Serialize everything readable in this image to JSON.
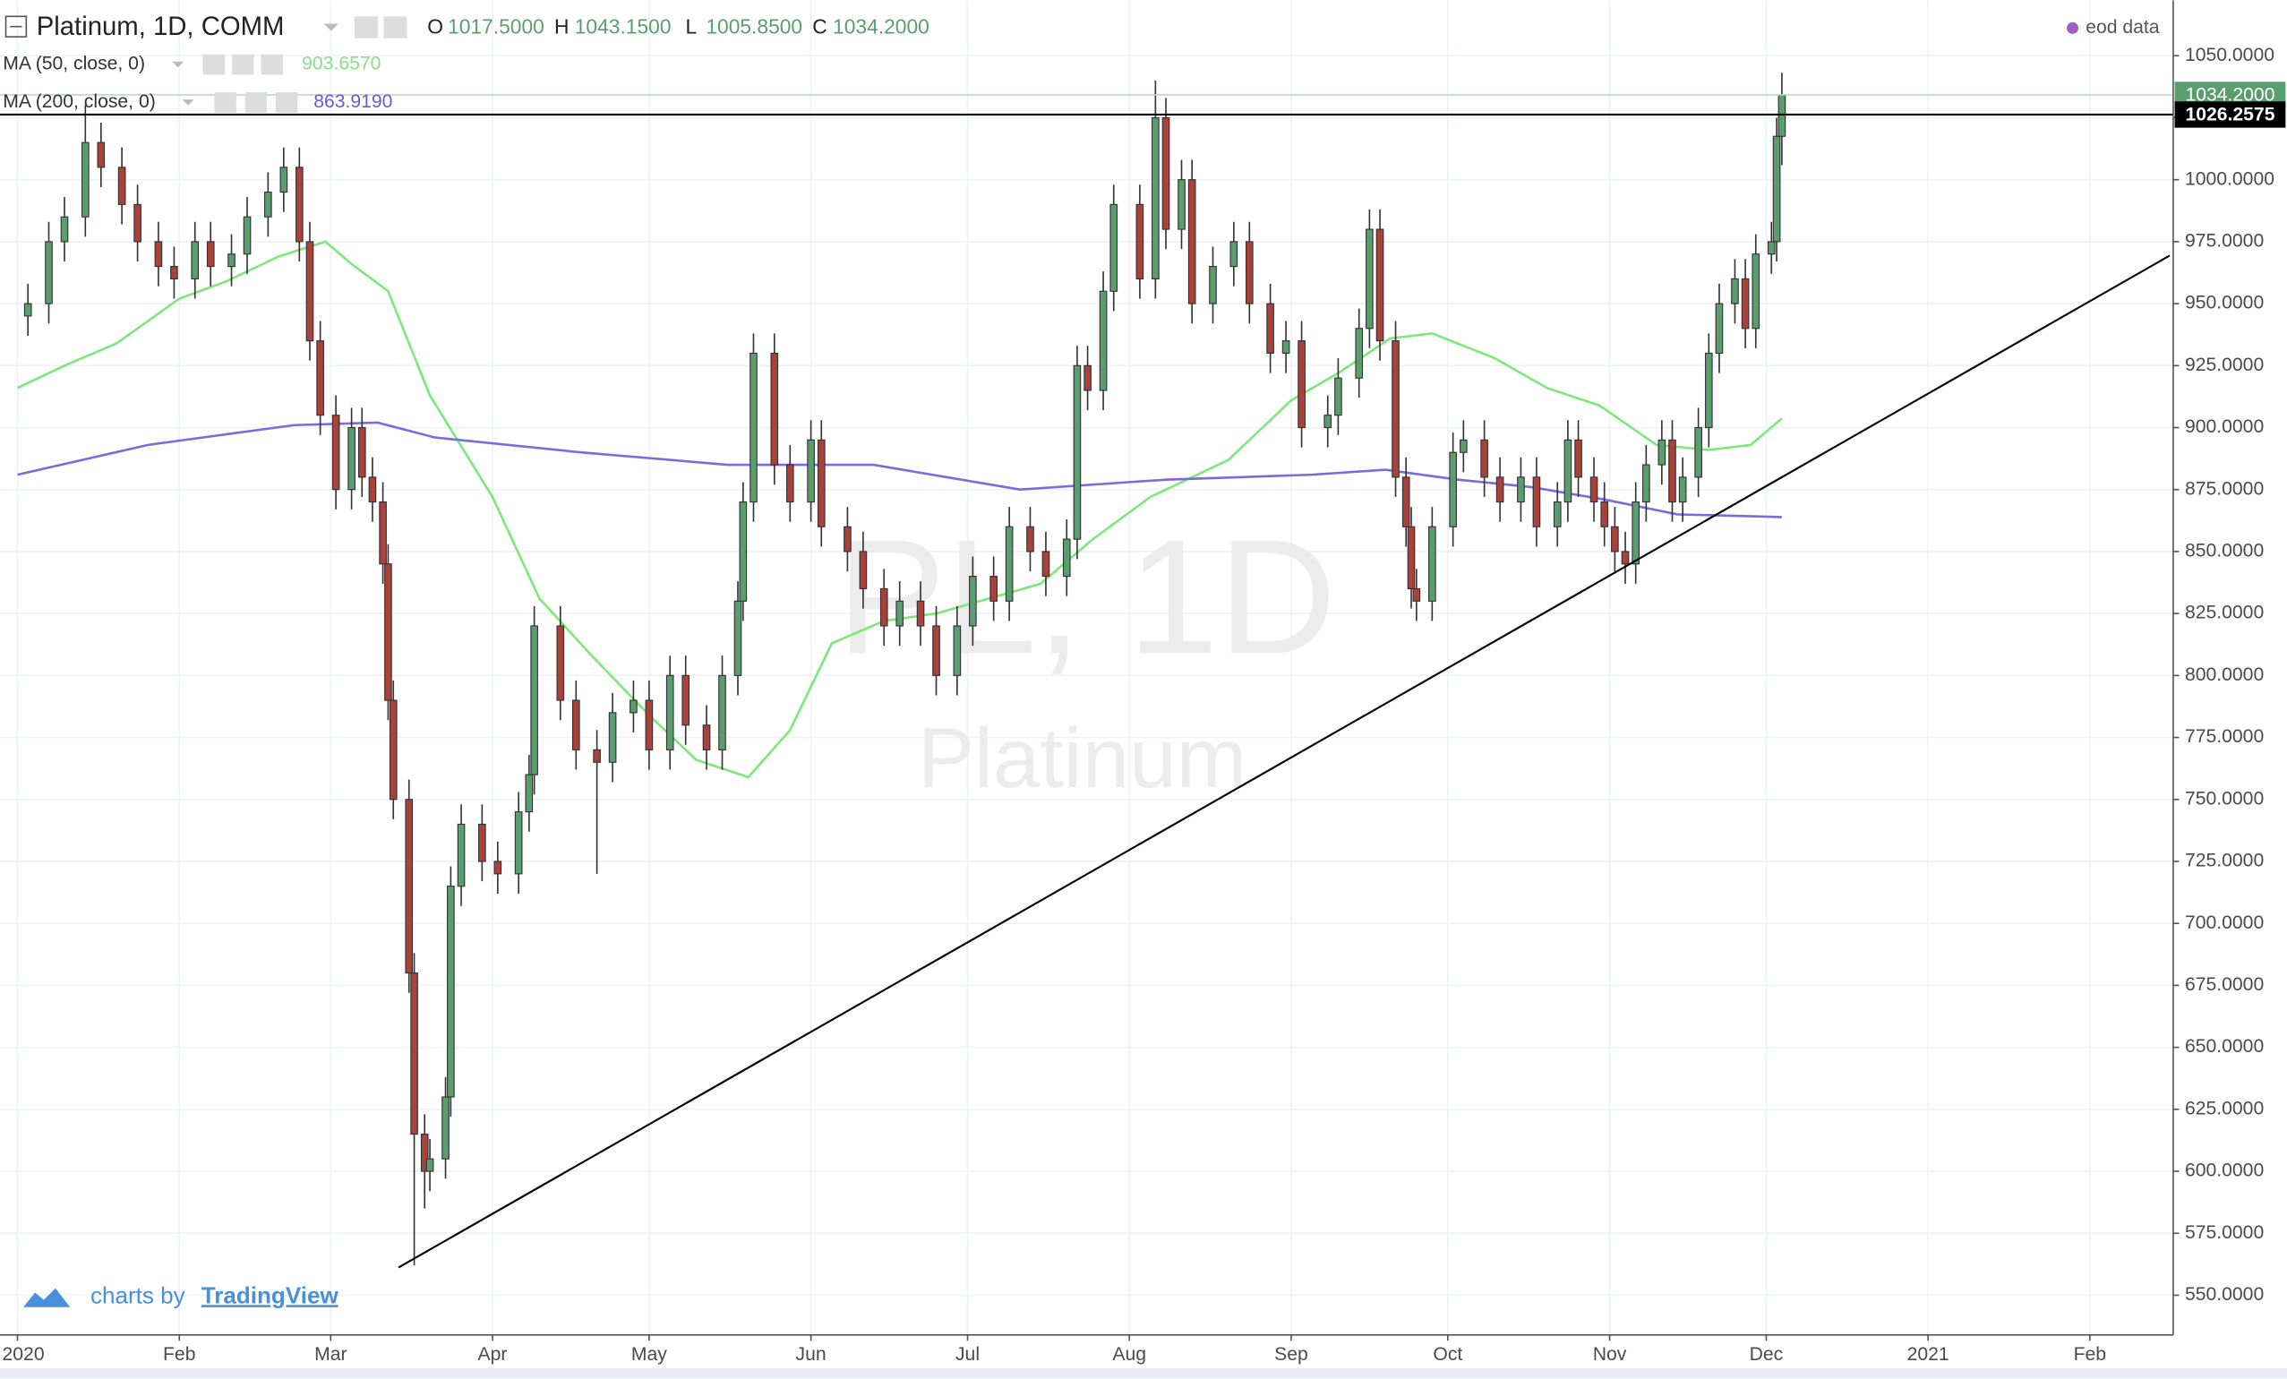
{
  "chart_data": {
    "type": "candlestick",
    "title": "Platinum, 1D, COMM",
    "ohlc": [
      {
        "key": "O",
        "label": "1017.5000"
      },
      {
        "key": "H",
        "label": "1043.1500"
      },
      {
        "key": "L",
        "label": "1005.8500"
      },
      {
        "key": "C",
        "label": "1034.2000"
      }
    ],
    "source": "eod data",
    "watermark": [
      "PL, 1D",
      "Platinum"
    ],
    "branding": {
      "prefix": "charts by",
      "name": "TradingView"
    },
    "up_color": "#5a9e6f",
    "down_color": "#a8423a",
    "xlim": [
      -3.35,
      412.97
    ],
    "ylim": [
      534.0,
      1072.35
    ],
    "xticks": [
      {
        "value": 0,
        "label": "2020"
      },
      {
        "value": 31,
        "label": "Feb"
      },
      {
        "value": 60,
        "label": "Mar"
      },
      {
        "value": 91,
        "label": "Apr"
      },
      {
        "value": 121,
        "label": "May"
      },
      {
        "value": 152,
        "label": "Jun"
      },
      {
        "value": 182,
        "label": "Jul"
      },
      {
        "value": 213,
        "label": "Aug"
      },
      {
        "value": 244,
        "label": "Sep"
      },
      {
        "value": 274,
        "label": "Oct"
      },
      {
        "value": 305,
        "label": "Nov"
      },
      {
        "value": 335,
        "label": "Dec"
      },
      {
        "value": 366,
        "label": "2021"
      },
      {
        "value": 397,
        "label": "Feb"
      }
    ],
    "yticks": [
      {
        "value": 550,
        "label": "550.0000"
      },
      {
        "value": 575,
        "label": "575.0000"
      },
      {
        "value": 600,
        "label": "600.0000"
      },
      {
        "value": 625,
        "label": "625.0000"
      },
      {
        "value": 650,
        "label": "650.0000"
      },
      {
        "value": 675,
        "label": "675.0000"
      },
      {
        "value": 700,
        "label": "700.0000"
      },
      {
        "value": 725,
        "label": "725.0000"
      },
      {
        "value": 750,
        "label": "750.0000"
      },
      {
        "value": 775,
        "label": "775.0000"
      },
      {
        "value": 800,
        "label": "800.0000"
      },
      {
        "value": 825,
        "label": "825.0000"
      },
      {
        "value": 850,
        "label": "850.0000"
      },
      {
        "value": 875,
        "label": "875.0000"
      },
      {
        "value": 900,
        "label": "900.0000"
      },
      {
        "value": 925,
        "label": "925.0000"
      },
      {
        "value": 950,
        "label": "950.0000"
      },
      {
        "value": 975,
        "label": "975.0000"
      },
      {
        "value": 1000,
        "label": "1000.0000"
      },
      {
        "value": 1025,
        "label": "1025.0000"
      },
      {
        "value": 1050,
        "label": "1050.0000"
      }
    ],
    "grid": true,
    "candles": {
      "x": [
        2,
        6,
        9,
        13,
        16,
        20,
        23,
        27,
        30,
        34,
        37,
        41,
        44,
        48,
        51,
        54,
        56,
        58,
        61,
        64,
        66,
        68,
        70,
        71,
        72,
        75,
        76,
        78,
        79,
        82,
        83,
        85,
        89,
        92,
        96,
        98,
        99,
        104,
        107,
        111,
        114,
        118,
        121,
        125,
        128,
        132,
        135,
        138,
        139,
        141,
        145,
        148,
        152,
        154,
        159,
        162,
        166,
        169,
        173,
        176,
        180,
        183,
        187,
        190,
        194,
        197,
        201,
        203,
        205,
        208,
        210,
        215,
        218,
        220,
        223,
        225,
        229,
        233,
        236,
        240,
        243,
        246,
        251,
        253,
        257,
        259,
        261,
        264,
        266,
        267,
        268,
        271,
        275,
        277,
        281,
        284,
        288,
        291,
        295,
        297,
        299,
        302,
        304,
        306,
        308,
        310,
        312,
        315,
        317,
        319,
        322,
        324,
        326,
        329,
        331,
        333,
        336,
        337,
        338
      ],
      "open": [
        945,
        950,
        975,
        985,
        1015,
        1005,
        990,
        975,
        965,
        960,
        975,
        965,
        970,
        985,
        995,
        1005,
        975,
        935,
        905,
        875,
        900,
        880,
        870,
        845,
        790,
        750,
        680,
        615,
        600,
        605,
        630,
        715,
        740,
        725,
        720,
        745,
        760,
        820,
        790,
        770,
        765,
        785,
        790,
        770,
        800,
        780,
        770,
        800,
        830,
        870,
        930,
        885,
        870,
        895,
        860,
        850,
        835,
        820,
        830,
        820,
        800,
        820,
        840,
        830,
        860,
        850,
        840,
        855,
        925,
        915,
        955,
        990,
        960,
        1025,
        980,
        1000,
        950,
        965,
        975,
        950,
        930,
        935,
        900,
        905,
        920,
        940,
        980,
        935,
        880,
        860,
        835,
        830,
        860,
        890,
        895,
        880,
        870,
        880,
        860,
        870,
        895,
        880,
        870,
        860,
        850,
        845,
        870,
        885,
        895,
        870,
        880,
        900,
        930,
        950,
        960,
        940,
        970,
        975,
        1017.5
      ],
      "high": [
        958,
        983,
        993,
        1030,
        1023,
        1013,
        998,
        983,
        973,
        983,
        983,
        978,
        993,
        1003,
        1013,
        1013,
        983,
        943,
        913,
        908,
        908,
        888,
        878,
        853,
        798,
        758,
        688,
        623,
        613,
        638,
        723,
        748,
        748,
        733,
        753,
        768,
        828,
        828,
        798,
        778,
        793,
        798,
        798,
        808,
        808,
        788,
        808,
        838,
        878,
        938,
        938,
        893,
        903,
        903,
        868,
        858,
        843,
        838,
        838,
        828,
        828,
        848,
        848,
        868,
        868,
        858,
        863,
        933,
        933,
        963,
        998,
        998,
        1040,
        1033,
        1008,
        1008,
        973,
        983,
        983,
        958,
        943,
        943,
        913,
        928,
        948,
        988,
        988,
        943,
        888,
        868,
        843,
        868,
        898,
        903,
        903,
        888,
        888,
        888,
        878,
        903,
        903,
        888,
        878,
        868,
        858,
        878,
        893,
        903,
        903,
        888,
        908,
        938,
        958,
        968,
        968,
        978,
        983,
        1025,
        1043.15
      ],
      "low": [
        937,
        942,
        967,
        977,
        997,
        982,
        967,
        957,
        952,
        952,
        957,
        957,
        962,
        977,
        987,
        967,
        927,
        897,
        867,
        867,
        872,
        862,
        837,
        782,
        742,
        672,
        562,
        585,
        592,
        597,
        622,
        707,
        717,
        712,
        712,
        737,
        752,
        782,
        762,
        720,
        757,
        777,
        762,
        762,
        772,
        762,
        762,
        792,
        822,
        862,
        877,
        862,
        862,
        852,
        842,
        827,
        812,
        812,
        812,
        792,
        792,
        812,
        822,
        822,
        842,
        832,
        832,
        847,
        907,
        907,
        947,
        952,
        952,
        972,
        972,
        942,
        942,
        957,
        942,
        922,
        922,
        892,
        892,
        897,
        912,
        932,
        927,
        872,
        852,
        827,
        822,
        822,
        852,
        882,
        872,
        862,
        862,
        852,
        852,
        862,
        872,
        862,
        852,
        842,
        837,
        837,
        862,
        877,
        862,
        862,
        872,
        892,
        922,
        942,
        932,
        932,
        962,
        967,
        1005.85
      ],
      "close": [
        950,
        975,
        985,
        1015,
        1005,
        990,
        975,
        965,
        960,
        975,
        965,
        970,
        985,
        995,
        1005,
        975,
        935,
        905,
        875,
        900,
        880,
        870,
        845,
        790,
        750,
        680,
        615,
        600,
        605,
        630,
        715,
        740,
        725,
        720,
        745,
        760,
        820,
        790,
        770,
        765,
        785,
        790,
        770,
        800,
        780,
        770,
        800,
        830,
        870,
        930,
        885,
        870,
        895,
        860,
        850,
        835,
        820,
        830,
        820,
        800,
        820,
        840,
        830,
        860,
        850,
        840,
        855,
        925,
        915,
        955,
        990,
        960,
        1025,
        980,
        1000,
        950,
        965,
        975,
        950,
        930,
        935,
        900,
        905,
        920,
        940,
        980,
        935,
        880,
        860,
        835,
        830,
        860,
        890,
        895,
        880,
        870,
        880,
        860,
        870,
        895,
        880,
        870,
        860,
        850,
        845,
        870,
        885,
        895,
        870,
        880,
        900,
        930,
        950,
        960,
        940,
        970,
        975,
        1017.5,
        1034.2
      ]
    },
    "series": [
      {
        "name": "MA (50, close, 0)",
        "last_label": "903.6570",
        "color": "#7de87a",
        "x": [
          0,
          9,
          19,
          31,
          40,
          50,
          59,
          64,
          71,
          79,
          91,
          100,
          110,
          121,
          130,
          140,
          148,
          156,
          166,
          176,
          186,
          196,
          206,
          217,
          232,
          244,
          253,
          263,
          271,
          283,
          293,
          303,
          314,
          324,
          332,
          338
        ],
        "values": [
          916,
          925,
          934,
          952,
          959,
          969,
          975,
          966,
          955,
          913,
          872,
          831,
          808,
          784,
          766,
          759,
          778,
          813,
          822,
          825,
          831,
          837,
          855,
          872,
          887,
          911,
          922,
          936,
          938,
          928,
          916,
          909,
          893,
          891,
          893,
          903.657
        ]
      },
      {
        "name": "MA (200, close, 0)",
        "last_label": "863.9190",
        "color": "#7b6be0",
        "x": [
          0,
          25,
          53,
          69,
          80,
          108,
          136,
          164,
          192,
          220,
          248,
          262,
          276,
          290,
          304,
          318,
          338
        ],
        "values": [
          881,
          893,
          901,
          902,
          896,
          890,
          885,
          885,
          875,
          879,
          881,
          883,
          879,
          876,
          871,
          865,
          863.919
        ]
      }
    ],
    "price_tags": [
      {
        "value": 1034.2,
        "label": "1034.2000",
        "color": "#5a9e6f"
      },
      {
        "value": 1026.2575,
        "label": "1026.2575",
        "color": "#000000"
      }
    ],
    "trendline": {
      "x": [
        73,
        412.3
      ],
      "y": [
        561.2,
        969.4
      ]
    }
  }
}
